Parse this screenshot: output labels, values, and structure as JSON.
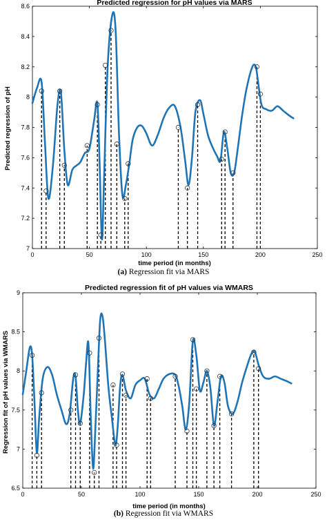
{
  "figure": {
    "colors": {
      "line": "#1f74b6",
      "stem": "#000000",
      "marker": "#333333",
      "axis": "#000000"
    }
  },
  "panels": [
    {
      "caption_tag": "(a)",
      "caption_text": " Regression fit via MARS"
    },
    {
      "caption_tag": "(b)",
      "caption_text": " Regression fit via WMARS"
    }
  ],
  "chart_data": [
    {
      "type": "line",
      "title": "Predicted regression for pH values via MARS",
      "xlabel": "time period (in months)",
      "ylabel": "Predicted regression of pH",
      "xlim": [
        0,
        250
      ],
      "ylim": [
        7,
        8.6
      ],
      "xticks": [
        0,
        50,
        100,
        150,
        200,
        250
      ],
      "yticks": [
        7,
        7.2,
        7.4,
        7.6,
        7.8,
        8,
        8.2,
        8.4,
        8.6
      ],
      "grid": false,
      "series": [
        {
          "x": [
            0,
            4,
            8,
            11,
            14,
            18,
            22,
            25,
            28,
            31,
            35,
            39,
            42,
            46,
            50,
            54,
            57,
            59,
            61,
            63,
            66,
            70,
            73,
            76,
            79,
            82,
            85,
            88,
            92,
            96,
            100,
            105,
            110,
            115,
            120,
            125,
            130,
            134,
            137,
            140,
            143,
            147,
            150,
            154,
            158,
            162,
            165,
            168,
            171,
            174,
            177,
            180,
            184,
            188,
            193,
            196,
            198,
            201,
            205,
            210,
            215,
            220,
            225,
            229
          ],
          "y": [
            7.96,
            8.06,
            8.1,
            7.7,
            7.33,
            7.55,
            7.95,
            8.03,
            7.65,
            7.42,
            7.52,
            7.55,
            7.57,
            7.63,
            7.66,
            7.84,
            7.96,
            7.55,
            7.06,
            7.5,
            8.2,
            8.54,
            8.44,
            7.75,
            7.35,
            7.42,
            7.56,
            7.72,
            7.8,
            7.81,
            7.76,
            7.68,
            7.75,
            7.86,
            7.93,
            7.94,
            7.8,
            7.58,
            7.42,
            7.6,
            7.9,
            7.98,
            7.89,
            7.75,
            7.67,
            7.61,
            7.58,
            7.77,
            7.66,
            7.5,
            7.5,
            7.65,
            7.88,
            8.06,
            8.2,
            8.2,
            8.1,
            7.95,
            7.92,
            7.91,
            7.94,
            7.91,
            7.88,
            7.86
          ]
        }
      ],
      "stems": {
        "x": [
          8,
          12,
          24,
          28,
          48,
          57,
          60,
          64,
          69,
          74,
          81,
          84,
          128,
          136,
          145,
          166,
          169,
          176,
          197,
          200
        ],
        "y": [
          8.04,
          7.38,
          8.04,
          7.55,
          7.68,
          7.95,
          7.09,
          8.21,
          8.44,
          7.69,
          7.33,
          7.56,
          7.8,
          7.4,
          7.95,
          7.59,
          7.77,
          7.5,
          8.2,
          8.02
        ]
      }
    },
    {
      "type": "line",
      "title": "Predicted regression fit of pH values via WMARS",
      "xlabel": "time period (in months)",
      "ylabel": "Regression fit of pH values via WMARS",
      "xlim": [
        0,
        250
      ],
      "ylim": [
        6.5,
        9
      ],
      "xticks": [
        0,
        50,
        100,
        150,
        200,
        250
      ],
      "yticks": [
        6.5,
        7,
        7.5,
        8,
        8.5,
        9
      ],
      "grid": false,
      "series": [
        {
          "x": [
            0,
            3,
            6,
            8,
            10,
            12,
            14,
            17,
            21,
            25,
            29,
            33,
            37,
            40,
            43,
            45,
            47,
            49,
            52,
            54,
            56,
            58,
            60,
            62,
            64,
            66,
            68,
            70,
            73,
            76,
            79,
            81,
            83,
            85,
            88,
            92,
            96,
            100,
            104,
            108,
            112,
            116,
            120,
            125,
            130,
            133,
            136,
            139,
            142,
            145,
            148,
            151,
            154,
            157,
            160,
            163,
            166,
            169,
            172,
            175,
            179,
            183,
            187,
            191,
            195,
            198,
            201,
            205,
            210,
            215,
            220,
            225,
            229
          ],
          "y": [
            7.7,
            8.0,
            8.3,
            8.2,
            7.6,
            6.95,
            7.4,
            7.9,
            8.05,
            7.95,
            7.7,
            7.5,
            7.32,
            7.45,
            7.9,
            7.93,
            7.5,
            7.33,
            7.7,
            8.1,
            8.35,
            7.4,
            6.75,
            7.3,
            8.0,
            8.65,
            8.7,
            8.4,
            7.8,
            7.4,
            7.05,
            7.3,
            7.8,
            7.95,
            7.75,
            7.65,
            7.82,
            7.88,
            7.9,
            7.7,
            7.65,
            7.77,
            7.9,
            7.96,
            7.95,
            7.8,
            7.55,
            7.25,
            7.6,
            8.38,
            8.2,
            7.75,
            7.85,
            8.0,
            7.78,
            7.3,
            7.6,
            7.93,
            7.85,
            7.55,
            7.45,
            7.6,
            7.85,
            8.05,
            8.22,
            8.24,
            8.08,
            7.93,
            7.9,
            7.93,
            7.9,
            7.87,
            7.84
          ]
        }
      ],
      "stems": {
        "x": [
          8,
          12,
          16,
          41,
          45,
          49,
          57,
          61,
          65,
          77,
          80,
          85,
          88,
          106,
          109,
          130,
          140,
          145,
          148,
          157,
          163,
          168,
          178,
          197,
          201
        ],
        "y": [
          8.2,
          6.92,
          7.72,
          7.5,
          7.95,
          7.33,
          8.23,
          6.7,
          8.42,
          7.82,
          7.05,
          7.96,
          7.69,
          7.9,
          7.65,
          7.93,
          7.23,
          8.4,
          7.77,
          8.0,
          7.3,
          7.93,
          7.45,
          8.24,
          8.03
        ]
      }
    }
  ]
}
